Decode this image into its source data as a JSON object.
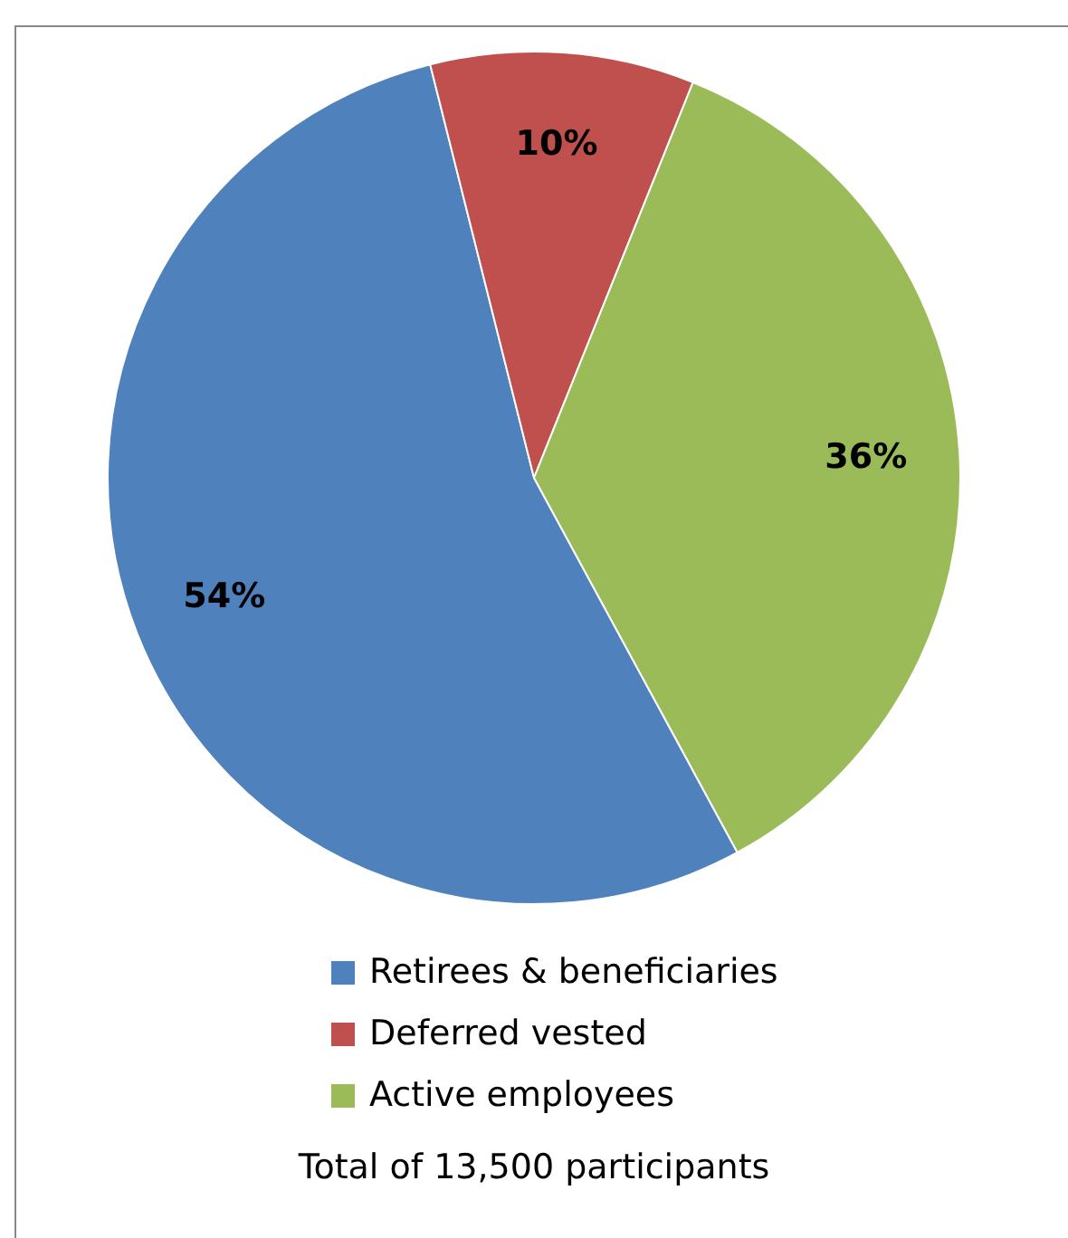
{
  "chart_data": {
    "type": "pie",
    "categories": [
      "Retirees & beneficiaries",
      "Deferred vested",
      "Active employees"
    ],
    "values": [
      54,
      10,
      36
    ],
    "colors": [
      "#4f81bd",
      "#c0504d",
      "#9bbb59"
    ],
    "value_labels": [
      "54%",
      "10%",
      "36%"
    ],
    "legend": "bottom",
    "annotations": [
      "Total of 13,500 participants"
    ]
  }
}
